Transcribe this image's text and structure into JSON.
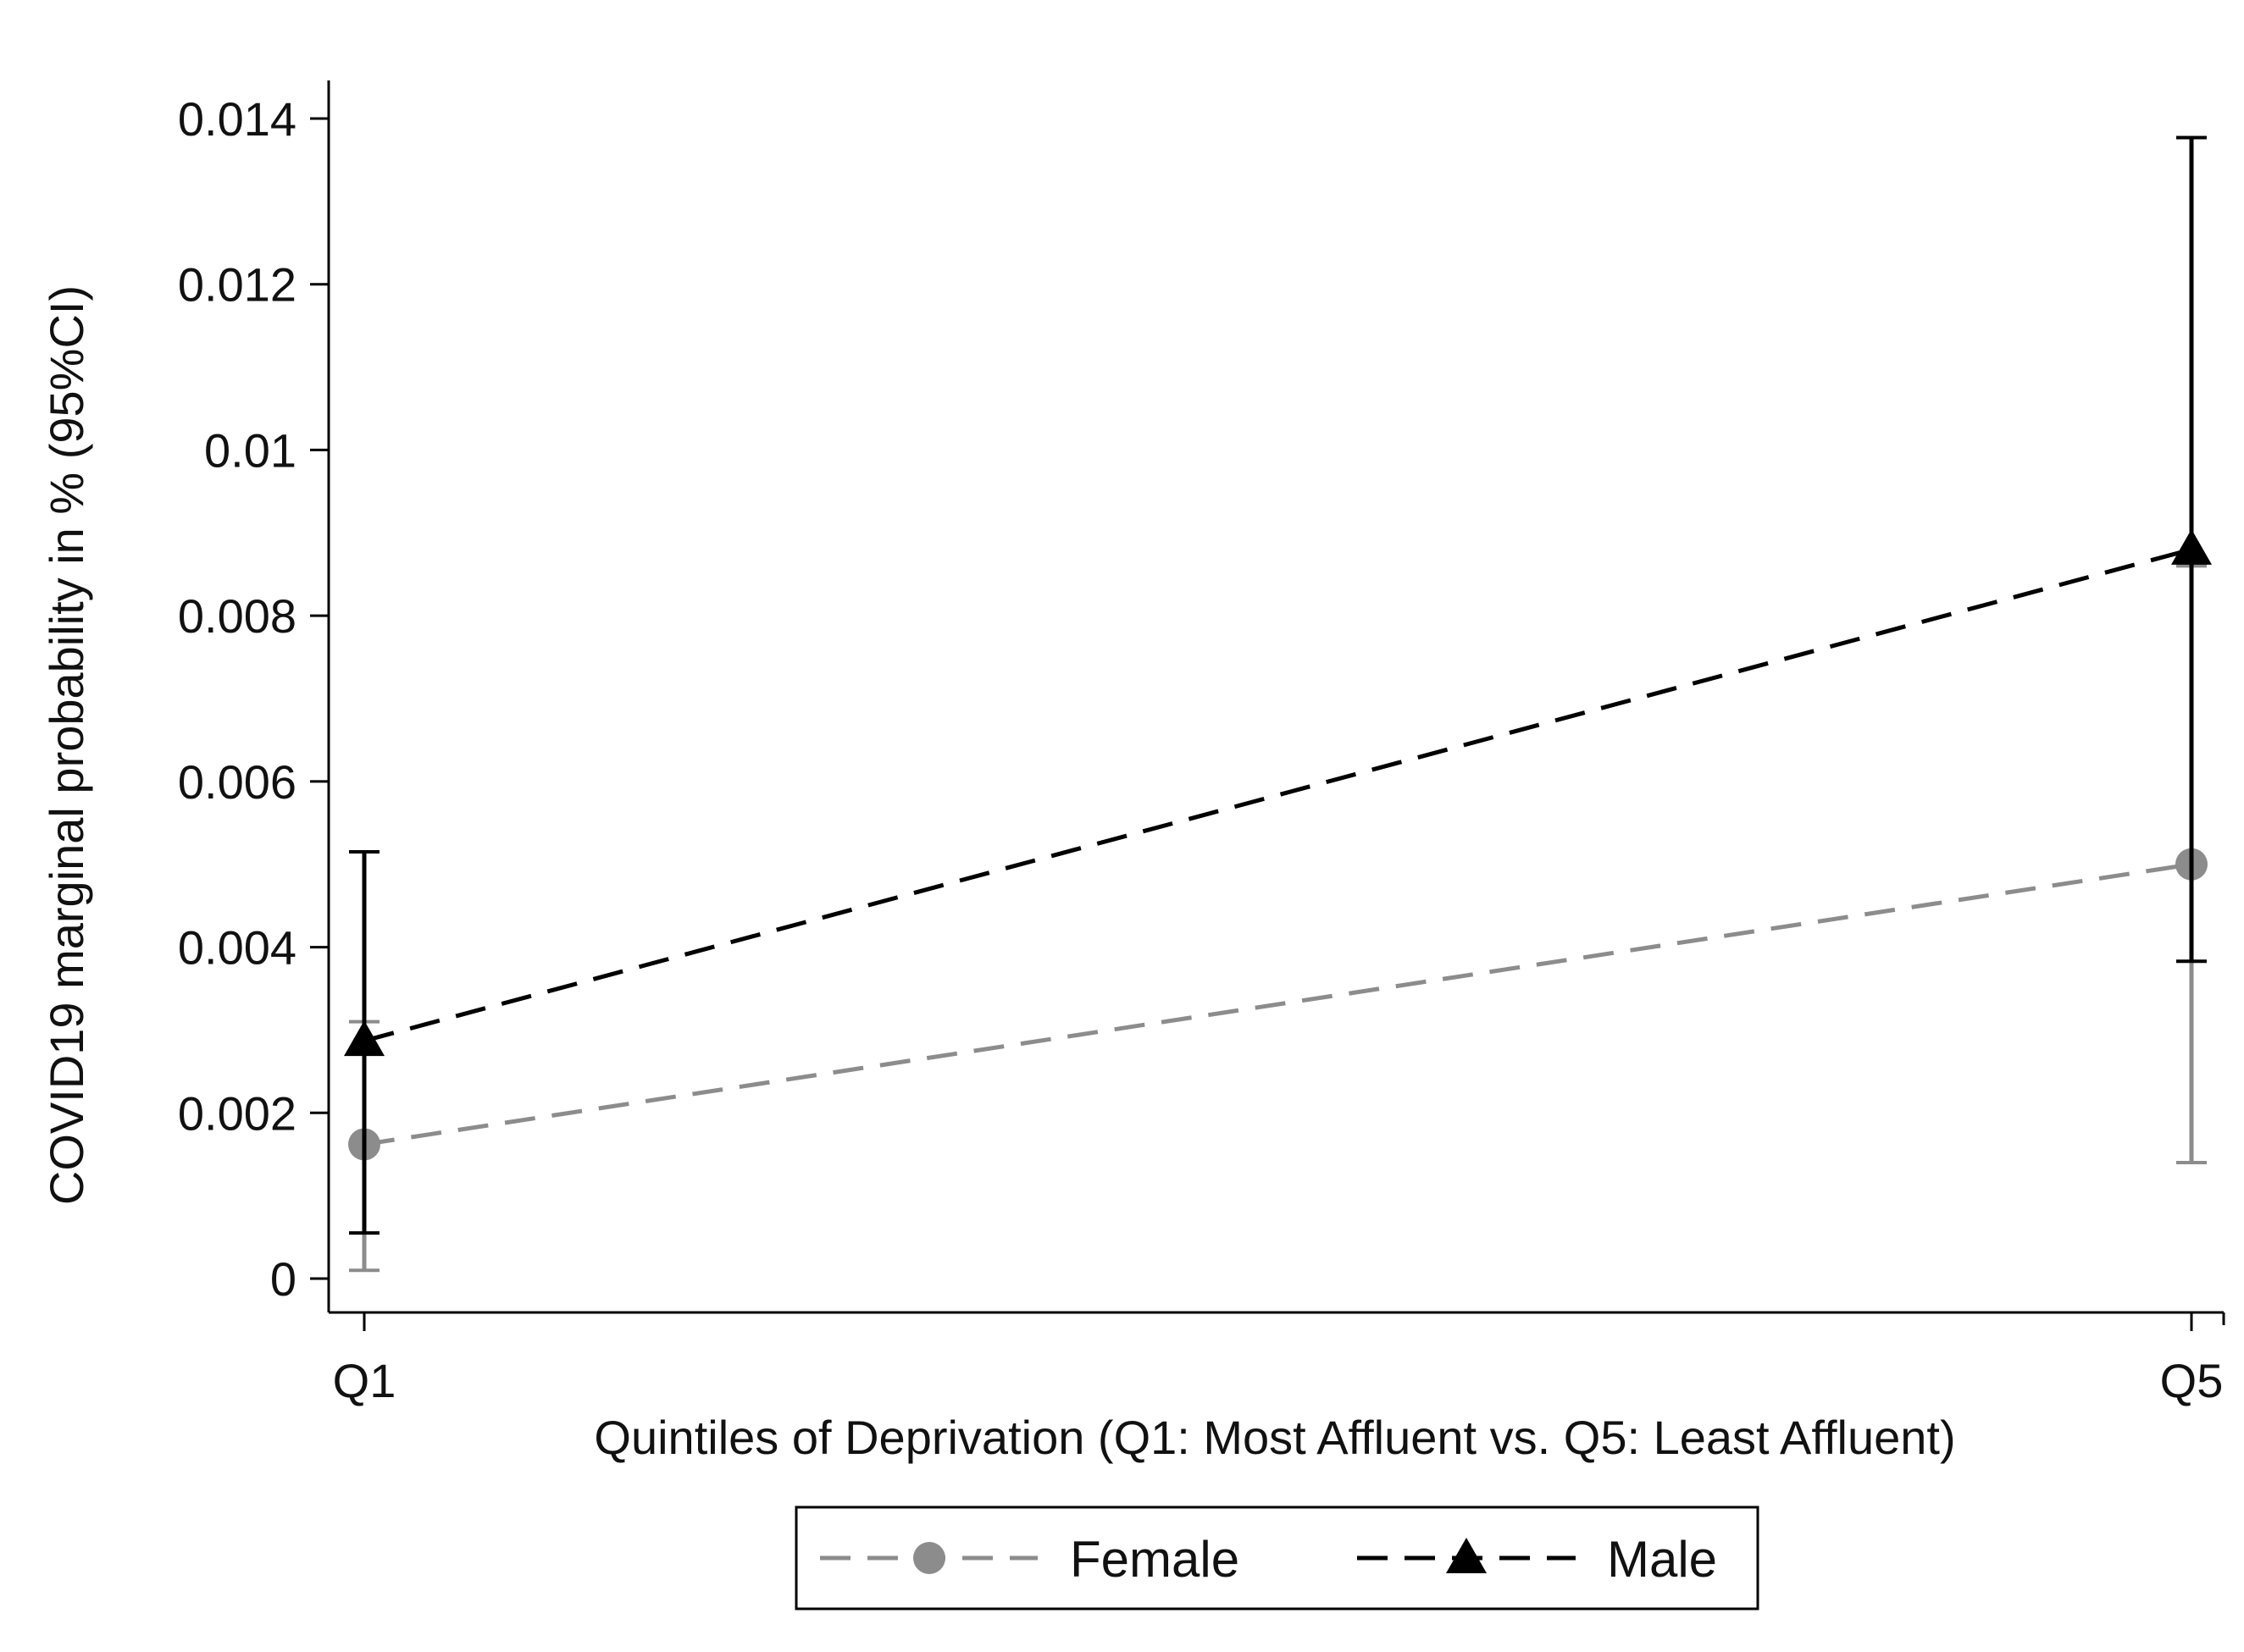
{
  "chart_data": {
    "type": "line",
    "ylabel": "COVID19 marginal probability in % (95%CI)",
    "xlabel": "Quintiles of Deprivation (Q1: Most Affluent vs. Q5: Least Affluent)",
    "categories": [
      "Q1",
      "Q5"
    ],
    "ylim": [
      0,
      0.014
    ],
    "yticks": [
      0,
      0.002,
      0.004,
      0.006,
      0.008,
      0.01,
      0.012,
      0.014
    ],
    "ytick_labels": [
      "0",
      "0.002",
      "0.004",
      "0.006",
      "0.008",
      "0.01",
      "0.012",
      "0.014"
    ],
    "grid": false,
    "legend_position": "bottom",
    "series": [
      {
        "name": "Female",
        "color": "#8c8c8c",
        "marker": "circle",
        "line_style": "dashed",
        "values": [
          0.00162,
          0.005
        ],
        "ci_lower": [
          0.0001,
          0.0014
        ],
        "ci_upper": [
          0.0031,
          0.0086
        ]
      },
      {
        "name": "Male",
        "color": "#000000",
        "marker": "triangle",
        "line_style": "dashed",
        "values": [
          0.00287,
          0.0088
        ],
        "ci_lower": [
          0.00055,
          0.00383
        ],
        "ci_upper": [
          0.00515,
          0.01377
        ]
      }
    ]
  }
}
